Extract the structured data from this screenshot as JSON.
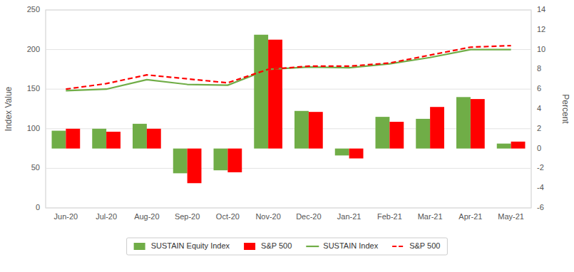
{
  "chart_data": {
    "type": "bar",
    "ylabel": "Index Value",
    "y2label": "Percent",
    "categories": [
      "Jun-20",
      "Jul-20",
      "Aug-20",
      "Sep-20",
      "Oct-20",
      "Nov-20",
      "Dec-20",
      "Jan-21",
      "Feb-21",
      "Mar-21",
      "Apr-21",
      "May-21"
    ],
    "series": [
      {
        "name": "SUSTAIN Equity Index",
        "type": "bar",
        "axis": "y2",
        "color": "#70ad47",
        "values": [
          1.8,
          2.0,
          2.5,
          -2.5,
          -2.2,
          11.5,
          3.8,
          -0.7,
          3.2,
          3.0,
          5.2,
          0.5
        ]
      },
      {
        "name": "S&P 500",
        "type": "bar",
        "axis": "y2",
        "color": "#ff0000",
        "values": [
          2.0,
          1.7,
          2.0,
          -3.5,
          -2.4,
          11.0,
          3.7,
          -1.0,
          2.7,
          4.2,
          5.0,
          0.7
        ]
      },
      {
        "name": "SUSTAIN Index",
        "type": "line",
        "color": "#70ad47",
        "line_style": "solid",
        "values": [
          148,
          150,
          162,
          156,
          155,
          175,
          178,
          177,
          182,
          190,
          200,
          200
        ]
      },
      {
        "name": "S&P 500",
        "type": "line",
        "color": "#ff0000",
        "line_style": "dashed",
        "values": [
          150,
          157,
          168,
          163,
          158,
          175,
          179,
          179,
          183,
          193,
          203,
          205
        ]
      }
    ],
    "ylim": [
      0,
      250
    ],
    "yticks": [
      0,
      50,
      100,
      150,
      200,
      250
    ],
    "y2lim": [
      -6,
      14
    ],
    "y2ticks": [
      -6,
      -4,
      -2,
      0,
      2,
      4,
      6,
      8,
      10,
      12,
      14
    ],
    "grid": true,
    "legend": "bottom"
  }
}
